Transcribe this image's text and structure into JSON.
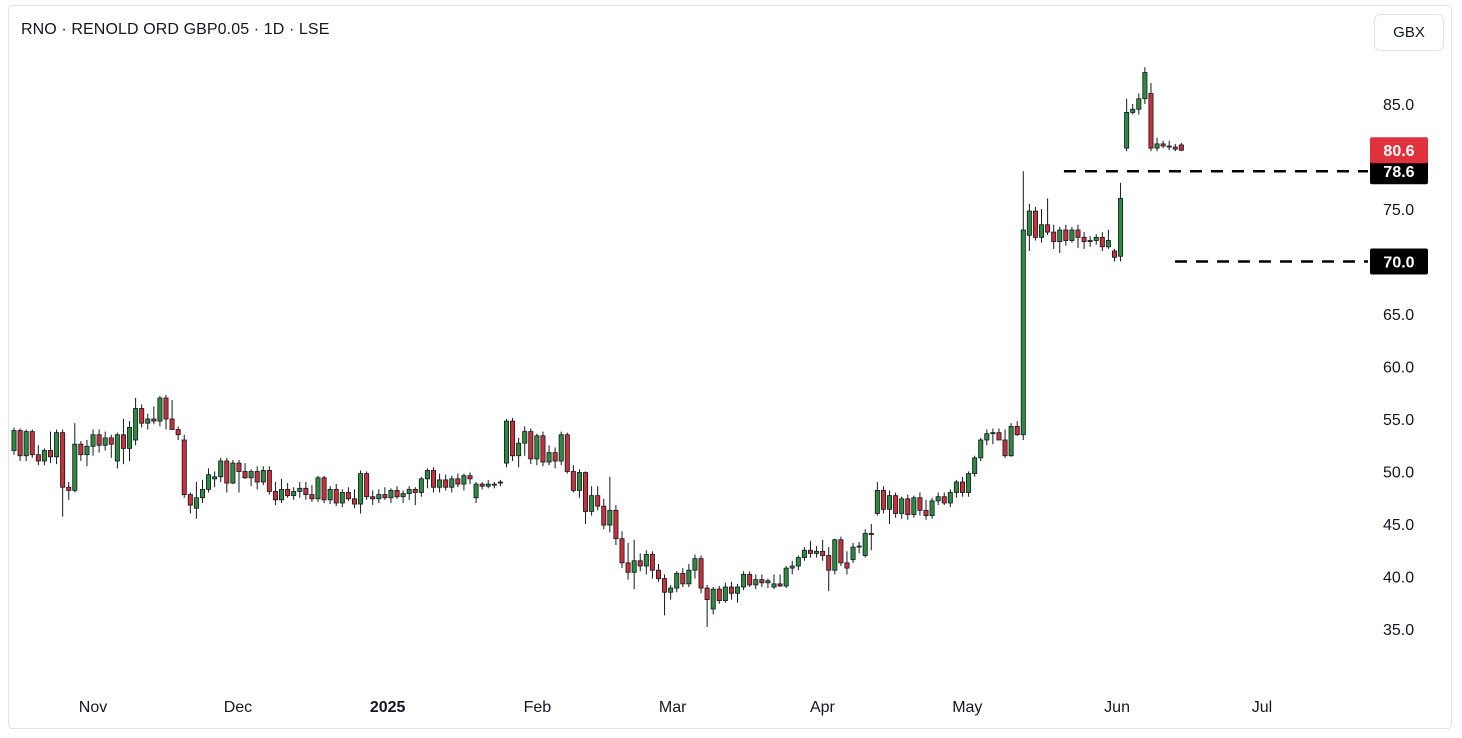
{
  "header": {
    "title": "RNO · RENOLD ORD GBP0.05 · 1D · LSE",
    "currency_button": "GBX"
  },
  "colors": {
    "up": "#2e8b3e",
    "down": "#c8303a",
    "wick": "#131722",
    "last_price_tag": "#e0323d",
    "level_tag": "#000000"
  },
  "chart_data": {
    "type": "candlestick",
    "title": "RNO · RENOLD ORD GBP0.05 · 1D · LSE",
    "currency": "GBX",
    "ylim": [
      30,
      90
    ],
    "y_ticks": [
      "85.0",
      "75.0",
      "65.0",
      "60.0",
      "55.0",
      "50.0",
      "45.0",
      "40.0",
      "35.0"
    ],
    "x_ticks": [
      {
        "label": "Nov",
        "date": "2024-11-01"
      },
      {
        "label": "Dec",
        "date": "2024-12-01"
      },
      {
        "label": "2025",
        "date": "2025-01-01",
        "bold": true
      },
      {
        "label": "Feb",
        "date": "2025-02-01"
      },
      {
        "label": "Mar",
        "date": "2025-03-01"
      },
      {
        "label": "Apr",
        "date": "2025-04-01"
      },
      {
        "label": "May",
        "date": "2025-05-01"
      },
      {
        "label": "Jun",
        "date": "2025-06-01"
      },
      {
        "label": "Jul",
        "date": "2025-07-01"
      }
    ],
    "last_price": "80.6",
    "levels": [
      {
        "label": "78.6",
        "value": 78.6,
        "from_date": "2025-05-21"
      },
      {
        "label": "70.0",
        "value": 70.0,
        "from_date": "2025-06-13"
      }
    ],
    "candles_ohlc": [
      [
        52.0,
        54.2,
        51.6,
        53.9
      ],
      [
        53.9,
        54.1,
        51.0,
        51.5
      ],
      [
        51.5,
        54.0,
        51.0,
        53.8
      ],
      [
        53.8,
        54.0,
        51.3,
        51.6
      ],
      [
        51.6,
        52.5,
        50.6,
        51.0
      ],
      [
        51.0,
        52.2,
        50.6,
        52.0
      ],
      [
        52.0,
        53.8,
        50.8,
        51.4
      ],
      [
        51.4,
        54.0,
        50.7,
        53.7
      ],
      [
        53.7,
        54.0,
        45.7,
        48.5
      ],
      [
        48.5,
        49.0,
        47.3,
        48.2
      ],
      [
        48.2,
        54.6,
        48.0,
        52.6
      ],
      [
        52.6,
        52.9,
        51.0,
        51.6
      ],
      [
        51.6,
        53.0,
        50.5,
        52.4
      ],
      [
        52.4,
        54.0,
        51.5,
        53.5
      ],
      [
        53.5,
        54.0,
        51.8,
        52.5
      ],
      [
        52.5,
        53.8,
        52.0,
        53.2
      ],
      [
        53.2,
        53.5,
        51.3,
        52.6
      ],
      [
        51.0,
        53.7,
        50.3,
        53.5
      ],
      [
        53.5,
        55.0,
        50.7,
        52.2
      ],
      [
        52.2,
        54.8,
        51.0,
        54.2
      ],
      [
        53.0,
        57.0,
        52.5,
        56.0
      ],
      [
        56.0,
        56.4,
        54.2,
        54.6
      ],
      [
        54.6,
        55.5,
        54.0,
        55.0
      ],
      [
        55.0,
        56.2,
        54.5,
        54.8
      ],
      [
        54.8,
        57.2,
        54.3,
        57.0
      ],
      [
        57.0,
        57.3,
        54.0,
        55.0
      ],
      [
        55.0,
        56.8,
        54.2,
        54.0
      ],
      [
        54.0,
        54.3,
        53.0,
        53.5
      ],
      [
        53.0,
        53.5,
        47.5,
        47.8
      ],
      [
        47.8,
        48.0,
        46.0,
        46.8
      ],
      [
        46.5,
        49.0,
        45.5,
        47.5
      ],
      [
        47.5,
        49.2,
        47.0,
        48.3
      ],
      [
        48.3,
        50.3,
        48.0,
        49.7
      ],
      [
        49.3,
        50.0,
        48.5,
        49.5
      ],
      [
        49.5,
        51.3,
        49.0,
        51.0
      ],
      [
        51.0,
        51.3,
        48.0,
        48.9
      ],
      [
        48.9,
        51.1,
        48.8,
        50.8
      ],
      [
        50.8,
        51.1,
        48.0,
        50.0
      ],
      [
        50.0,
        50.8,
        49.3,
        49.4
      ],
      [
        49.4,
        50.2,
        48.6,
        50.0
      ],
      [
        50.0,
        50.5,
        48.3,
        49.0
      ],
      [
        49.0,
        50.5,
        48.7,
        50.1
      ],
      [
        50.1,
        50.5,
        47.8,
        48.1
      ],
      [
        48.1,
        49.0,
        46.8,
        47.3
      ],
      [
        47.3,
        49.3,
        47.0,
        48.3
      ],
      [
        48.3,
        48.9,
        47.5,
        47.7
      ],
      [
        47.7,
        48.5,
        47.3,
        48.1
      ],
      [
        48.1,
        49.0,
        47.5,
        48.4
      ],
      [
        48.4,
        49.0,
        47.3,
        47.8
      ],
      [
        47.8,
        48.7,
        47.1,
        47.4
      ],
      [
        47.4,
        49.6,
        47.1,
        49.4
      ],
      [
        49.4,
        49.6,
        47.0,
        47.3
      ],
      [
        47.3,
        48.6,
        46.9,
        48.3
      ],
      [
        48.3,
        48.8,
        46.7,
        47.0
      ],
      [
        47.0,
        48.3,
        46.6,
        48.0
      ],
      [
        48.0,
        48.5,
        47.2,
        47.4
      ],
      [
        47.4,
        48.3,
        46.5,
        46.9
      ],
      [
        46.9,
        50.1,
        46.0,
        49.8
      ],
      [
        49.8,
        50.0,
        47.3,
        47.6
      ],
      [
        47.6,
        48.2,
        46.8,
        47.4
      ],
      [
        47.4,
        48.3,
        47.0,
        47.8
      ],
      [
        47.8,
        48.5,
        47.3,
        47.5
      ],
      [
        47.5,
        48.4,
        47.0,
        48.2
      ],
      [
        48.2,
        48.6,
        47.4,
        47.6
      ],
      [
        47.6,
        48.2,
        47.0,
        47.9
      ],
      [
        47.9,
        48.6,
        47.3,
        48.3
      ],
      [
        48.3,
        48.5,
        46.8,
        48.0
      ],
      [
        48.0,
        49.5,
        47.6,
        49.3
      ],
      [
        49.3,
        50.3,
        48.4,
        50.1
      ],
      [
        50.1,
        50.4,
        48.0,
        48.5
      ],
      [
        48.5,
        49.8,
        48.0,
        49.2
      ],
      [
        49.2,
        49.7,
        48.2,
        48.5
      ],
      [
        48.5,
        49.6,
        48.0,
        49.3
      ],
      [
        49.3,
        49.8,
        48.5,
        48.8
      ],
      [
        48.8,
        49.8,
        48.2,
        49.6
      ],
      [
        49.6,
        49.9,
        48.8,
        49.3
      ],
      [
        47.5,
        49.0,
        47.0,
        48.8
      ],
      [
        48.8,
        49.0,
        48.3,
        48.6
      ],
      [
        48.6,
        49.2,
        48.4,
        48.8
      ],
      [
        48.8,
        49.0,
        48.4,
        48.7
      ],
      [
        49.0,
        49.2,
        48.6,
        48.9
      ],
      [
        50.8,
        55.0,
        50.4,
        54.8
      ],
      [
        54.8,
        55.1,
        51.0,
        51.5
      ],
      [
        51.5,
        53.2,
        50.4,
        52.7
      ],
      [
        52.7,
        54.3,
        51.5,
        53.8
      ],
      [
        53.8,
        54.1,
        50.7,
        51.2
      ],
      [
        51.2,
        53.6,
        50.6,
        53.4
      ],
      [
        53.4,
        53.8,
        50.5,
        50.9
      ],
      [
        50.9,
        52.5,
        50.6,
        51.8
      ],
      [
        51.8,
        52.3,
        50.3,
        51.0
      ],
      [
        51.0,
        53.8,
        50.6,
        53.5
      ],
      [
        53.5,
        53.7,
        49.8,
        50.0
      ],
      [
        50.0,
        50.6,
        48.0,
        48.2
      ],
      [
        48.2,
        50.2,
        47.5,
        49.9
      ],
      [
        49.9,
        50.0,
        45.0,
        46.2
      ],
      [
        46.2,
        48.6,
        45.8,
        47.7
      ],
      [
        47.7,
        48.6,
        46.3,
        46.7
      ],
      [
        46.7,
        47.4,
        44.5,
        44.9
      ],
      [
        44.9,
        49.5,
        44.2,
        46.3
      ],
      [
        46.3,
        46.8,
        43.0,
        43.6
      ],
      [
        43.6,
        44.3,
        40.8,
        41.3
      ],
      [
        41.3,
        43.2,
        39.7,
        40.4
      ],
      [
        40.4,
        43.5,
        38.8,
        41.5
      ],
      [
        41.5,
        42.2,
        40.5,
        41.0
      ],
      [
        41.0,
        42.5,
        40.2,
        42.1
      ],
      [
        42.1,
        42.4,
        39.8,
        40.6
      ],
      [
        40.6,
        41.2,
        39.5,
        39.8
      ],
      [
        39.8,
        40.2,
        36.3,
        38.5
      ],
      [
        38.5,
        39.2,
        37.8,
        38.9
      ],
      [
        38.9,
        40.5,
        38.5,
        40.3
      ],
      [
        40.3,
        40.8,
        39.0,
        39.3
      ],
      [
        39.3,
        41.2,
        39.0,
        40.6
      ],
      [
        40.6,
        42.1,
        39.8,
        41.7
      ],
      [
        41.7,
        42.0,
        38.4,
        38.9
      ],
      [
        38.9,
        39.2,
        35.2,
        37.8
      ],
      [
        36.9,
        39.0,
        36.4,
        38.8
      ],
      [
        38.8,
        39.1,
        37.4,
        37.7
      ],
      [
        37.7,
        39.4,
        37.5,
        39.0
      ],
      [
        39.0,
        39.5,
        37.8,
        38.4
      ],
      [
        38.4,
        39.3,
        37.5,
        39.0
      ],
      [
        39.0,
        40.5,
        38.7,
        40.2
      ],
      [
        40.2,
        40.5,
        39.0,
        39.2
      ],
      [
        39.2,
        40.2,
        38.8,
        39.7
      ],
      [
        39.7,
        40.2,
        39.0,
        39.4
      ],
      [
        39.4,
        39.8,
        38.9,
        39.6
      ],
      [
        39.0,
        40.2,
        38.8,
        39.3
      ],
      [
        39.3,
        40.2,
        39.0,
        39.1
      ],
      [
        39.1,
        41.0,
        38.9,
        40.8
      ],
      [
        40.8,
        41.5,
        40.2,
        41.0
      ],
      [
        41.0,
        42.0,
        40.6,
        41.8
      ],
      [
        41.8,
        42.8,
        41.5,
        42.5
      ],
      [
        42.5,
        43.4,
        41.8,
        42.2
      ],
      [
        42.2,
        42.9,
        41.8,
        42.4
      ],
      [
        42.4,
        43.5,
        41.5,
        42.0
      ],
      [
        42.0,
        42.8,
        38.6,
        40.6
      ],
      [
        40.6,
        43.6,
        40.2,
        43.5
      ],
      [
        43.5,
        43.8,
        41.0,
        41.3
      ],
      [
        41.3,
        42.4,
        40.2,
        40.8
      ],
      [
        41.6,
        43.2,
        41.3,
        42.8
      ],
      [
        42.8,
        43.3,
        42.2,
        42.9
      ],
      [
        42.0,
        44.5,
        41.8,
        44.1
      ],
      [
        44.1,
        45.0,
        42.5,
        44.0
      ],
      [
        46.0,
        49.0,
        45.8,
        48.2
      ],
      [
        48.2,
        48.6,
        46.0,
        46.4
      ],
      [
        46.4,
        48.2,
        45.0,
        47.7
      ],
      [
        47.7,
        48.0,
        45.6,
        46.0
      ],
      [
        46.0,
        47.6,
        45.5,
        47.4
      ],
      [
        47.4,
        47.8,
        45.4,
        45.9
      ],
      [
        45.9,
        47.7,
        45.6,
        47.5
      ],
      [
        47.5,
        48.0,
        45.8,
        46.3
      ],
      [
        46.3,
        47.3,
        45.4,
        45.8
      ],
      [
        45.8,
        47.5,
        45.5,
        47.2
      ],
      [
        47.2,
        48.0,
        46.8,
        47.6
      ],
      [
        47.6,
        48.0,
        46.8,
        47.0
      ],
      [
        47.0,
        48.3,
        46.6,
        48.0
      ],
      [
        48.0,
        49.2,
        47.5,
        49.0
      ],
      [
        49.0,
        49.5,
        47.6,
        48.0
      ],
      [
        48.0,
        50.0,
        47.6,
        49.8
      ],
      [
        49.8,
        51.5,
        49.5,
        51.3
      ],
      [
        51.3,
        53.2,
        51.0,
        53.0
      ],
      [
        53.0,
        54.0,
        52.5,
        53.6
      ],
      [
        53.6,
        54.1,
        52.6,
        53.7
      ],
      [
        53.7,
        54.1,
        53.0,
        53.0
      ],
      [
        53.0,
        54.0,
        51.3,
        51.5
      ],
      [
        51.5,
        54.6,
        51.4,
        54.3
      ],
      [
        54.3,
        54.8,
        53.4,
        53.5
      ],
      [
        53.5,
        78.6,
        53.0,
        73.0
      ],
      [
        72.5,
        75.5,
        71.0,
        74.8
      ],
      [
        74.8,
        75.2,
        72.0,
        72.3
      ],
      [
        72.3,
        75.0,
        71.8,
        73.5
      ],
      [
        73.5,
        76.0,
        72.5,
        72.8
      ],
      [
        72.8,
        73.5,
        71.2,
        71.9
      ],
      [
        71.9,
        73.3,
        70.8,
        73.0
      ],
      [
        73.0,
        73.5,
        71.5,
        72.0
      ],
      [
        72.0,
        73.3,
        71.8,
        73.0
      ],
      [
        73.0,
        73.5,
        71.3,
        72.3
      ],
      [
        72.3,
        72.8,
        71.2,
        71.9
      ],
      [
        71.9,
        72.4,
        71.4,
        72.0
      ],
      [
        72.0,
        72.6,
        71.6,
        72.3
      ],
      [
        72.3,
        72.8,
        71.0,
        71.4
      ],
      [
        71.4,
        73.0,
        71.2,
        72.0
      ],
      [
        71.0,
        71.2,
        70.0,
        70.4
      ],
      [
        70.5,
        77.5,
        70.0,
        76.0
      ],
      [
        80.8,
        85.5,
        80.5,
        84.2
      ],
      [
        84.2,
        85.0,
        84.0,
        84.5
      ],
      [
        84.5,
        86.0,
        84.0,
        85.5
      ],
      [
        85.5,
        88.5,
        85.0,
        88.0
      ],
      [
        86.0,
        87.0,
        80.5,
        80.8
      ],
      [
        80.8,
        81.8,
        80.5,
        81.2
      ],
      [
        81.2,
        81.5,
        80.8,
        81.0
      ],
      [
        81.0,
        81.5,
        80.6,
        80.9
      ],
      [
        80.9,
        81.2,
        80.5,
        80.7
      ],
      [
        81.1,
        81.3,
        80.5,
        80.6
      ]
    ]
  }
}
